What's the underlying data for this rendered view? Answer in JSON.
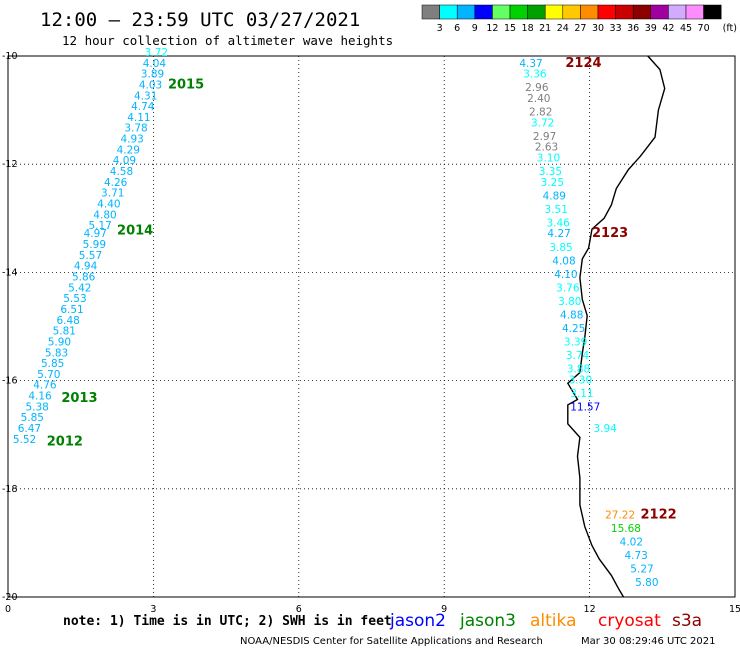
{
  "header": {
    "title": "12:00 – 23:59 UTC 03/27/2021",
    "subtitle": "12 hour collection of altimeter wave heights"
  },
  "colorbar": {
    "swatches": [
      "#7f7f7f",
      "#00ffff",
      "#00b4ff",
      "#0000ff",
      "#64ff64",
      "#00d200",
      "#00a000",
      "#ffff00",
      "#ffc800",
      "#ff8c00",
      "#ff0000",
      "#c80000",
      "#8c0000",
      "#a000a0",
      "#d2aaff",
      "#ff8cff",
      "#000000"
    ],
    "labels": [
      "3",
      "6",
      "9",
      "12",
      "15",
      "18",
      "21",
      "24",
      "27",
      "30",
      "33",
      "36",
      "39",
      "42",
      "45",
      "70"
    ],
    "unit": "(ft)"
  },
  "axes": {
    "xlim": [
      0,
      15
    ],
    "ylim": [
      -20,
      -10
    ],
    "xticks": [
      "0",
      "3",
      "6",
      "9",
      "12",
      "15"
    ],
    "yticks": [
      "-10",
      "-12",
      "-14",
      "-16",
      "-18",
      "-20"
    ]
  },
  "footer": {
    "note": "note:  1) Time is in UTC;  2) SWH is in feet",
    "credit": "NOAA/NESDIS Center for Satellite Applications and Research",
    "timestamp": "Mar 30 08:29:46 UTC 2021",
    "legend": [
      {
        "label": "jason2",
        "color": "#0000ff"
      },
      {
        "label": "jason3",
        "color": "#008000"
      },
      {
        "label": "altika",
        "color": "#ff8c00"
      },
      {
        "label": "cryosat",
        "color": "#ff0000"
      },
      {
        "label": "s3a",
        "color": "#8c0000"
      }
    ]
  },
  "chart_data": {
    "type": "scatter",
    "tracks": [
      {
        "name": "2015",
        "color": "#008000",
        "lon": 3.3,
        "lat": -10.6
      },
      {
        "name": "2014",
        "color": "#008000",
        "lon": 2.25,
        "lat": -13.3
      },
      {
        "name": "2013",
        "color": "#008000",
        "lon": 1.1,
        "lat": -16.4
      },
      {
        "name": "2012",
        "color": "#008000",
        "lon": 0.8,
        "lat": -17.2
      },
      {
        "name": "2124",
        "color": "#8c0000",
        "lon": 11.5,
        "lat": -10.2
      },
      {
        "name": "2123",
        "color": "#8c0000",
        "lon": 12.05,
        "lat": -13.35
      },
      {
        "name": "2122",
        "color": "#8c0000",
        "lon": 13.05,
        "lat": -18.55
      }
    ],
    "points": [
      {
        "v": "3.72",
        "lon": 2.82,
        "lat": -10.0,
        "c": "#00ffff"
      },
      {
        "v": "4.04",
        "lon": 2.78,
        "lat": -10.2,
        "c": "#00b4ff"
      },
      {
        "v": "3.89",
        "lon": 2.74,
        "lat": -10.4,
        "c": "#00b4ff"
      },
      {
        "v": "4.03",
        "lon": 2.7,
        "lat": -10.6,
        "c": "#00b4ff"
      },
      {
        "v": "4.31",
        "lon": 2.6,
        "lat": -10.8,
        "c": "#00b4ff"
      },
      {
        "v": "4.74",
        "lon": 2.54,
        "lat": -11.0,
        "c": "#00b4ff"
      },
      {
        "v": "4.11",
        "lon": 2.46,
        "lat": -11.2,
        "c": "#00b4ff"
      },
      {
        "v": "3.78",
        "lon": 2.4,
        "lat": -11.4,
        "c": "#00b4ff"
      },
      {
        "v": "4.93",
        "lon": 2.32,
        "lat": -11.6,
        "c": "#00b4ff"
      },
      {
        "v": "4.29",
        "lon": 2.24,
        "lat": -11.8,
        "c": "#00b4ff"
      },
      {
        "v": "4.09",
        "lon": 2.16,
        "lat": -12.0,
        "c": "#00b4ff"
      },
      {
        "v": "4.58",
        "lon": 2.1,
        "lat": -12.2,
        "c": "#00b4ff"
      },
      {
        "v": "4.26",
        "lon": 1.98,
        "lat": -12.4,
        "c": "#00b4ff"
      },
      {
        "v": "3.71",
        "lon": 1.92,
        "lat": -12.6,
        "c": "#00b4ff"
      },
      {
        "v": "4.40",
        "lon": 1.84,
        "lat": -12.8,
        "c": "#00b4ff"
      },
      {
        "v": "4.80",
        "lon": 1.76,
        "lat": -13.0,
        "c": "#00b4ff"
      },
      {
        "v": "5.17",
        "lon": 1.66,
        "lat": -13.2,
        "c": "#00b4ff"
      },
      {
        "v": "4.97",
        "lon": 1.56,
        "lat": -13.35,
        "c": "#00b4ff"
      },
      {
        "v": "5.99",
        "lon": 1.54,
        "lat": -13.55,
        "c": "#00b4ff"
      },
      {
        "v": "5.57",
        "lon": 1.46,
        "lat": -13.75,
        "c": "#00b4ff"
      },
      {
        "v": "4.94",
        "lon": 1.36,
        "lat": -13.95,
        "c": "#00b4ff"
      },
      {
        "v": "5.86",
        "lon": 1.32,
        "lat": -14.15,
        "c": "#00b4ff"
      },
      {
        "v": "5.42",
        "lon": 1.24,
        "lat": -14.35,
        "c": "#00b4ff"
      },
      {
        "v": "5.53",
        "lon": 1.14,
        "lat": -14.55,
        "c": "#00b4ff"
      },
      {
        "v": "6.51",
        "lon": 1.08,
        "lat": -14.75,
        "c": "#00b4ff"
      },
      {
        "v": "6.48",
        "lon": 1.0,
        "lat": -14.95,
        "c": "#00b4ff"
      },
      {
        "v": "5.81",
        "lon": 0.92,
        "lat": -15.15,
        "c": "#00b4ff"
      },
      {
        "v": "5.90",
        "lon": 0.82,
        "lat": -15.35,
        "c": "#00b4ff"
      },
      {
        "v": "5.83",
        "lon": 0.76,
        "lat": -15.55,
        "c": "#00b4ff"
      },
      {
        "v": "5.85",
        "lon": 0.68,
        "lat": -15.75,
        "c": "#00b4ff"
      },
      {
        "v": "5.70",
        "lon": 0.6,
        "lat": -15.95,
        "c": "#00b4ff"
      },
      {
        "v": "4.76",
        "lon": 0.52,
        "lat": -16.15,
        "c": "#00b4ff"
      },
      {
        "v": "4.16",
        "lon": 0.42,
        "lat": -16.35,
        "c": "#00b4ff"
      },
      {
        "v": "5.38",
        "lon": 0.36,
        "lat": -16.55,
        "c": "#00b4ff"
      },
      {
        "v": "5.85",
        "lon": 0.26,
        "lat": -16.75,
        "c": "#00b4ff"
      },
      {
        "v": "6.47",
        "lon": 0.2,
        "lat": -16.95,
        "c": "#00b4ff"
      },
      {
        "v": "5.52",
        "lon": 0.1,
        "lat": -17.15,
        "c": "#00b4ff"
      },
      {
        "v": "4.37",
        "lon": 10.55,
        "lat": -10.2,
        "c": "#00b4ff"
      },
      {
        "v": "3.36",
        "lon": 10.63,
        "lat": -10.4,
        "c": "#00ffff"
      },
      {
        "v": "2.96",
        "lon": 10.67,
        "lat": -10.65,
        "c": "#7f7f7f"
      },
      {
        "v": "2.40",
        "lon": 10.71,
        "lat": -10.85,
        "c": "#7f7f7f"
      },
      {
        "v": "2.82",
        "lon": 10.75,
        "lat": -11.1,
        "c": "#7f7f7f"
      },
      {
        "v": "3.72",
        "lon": 10.79,
        "lat": -11.3,
        "c": "#00ffff"
      },
      {
        "v": "2.97",
        "lon": 10.83,
        "lat": -11.55,
        "c": "#7f7f7f"
      },
      {
        "v": "2.63",
        "lon": 10.87,
        "lat": -11.75,
        "c": "#7f7f7f"
      },
      {
        "v": "3.10",
        "lon": 10.91,
        "lat": -11.95,
        "c": "#00ffff"
      },
      {
        "v": "3.35",
        "lon": 10.95,
        "lat": -12.2,
        "c": "#00ffff"
      },
      {
        "v": "3.25",
        "lon": 10.99,
        "lat": -12.4,
        "c": "#00ffff"
      },
      {
        "v": "4.89",
        "lon": 11.03,
        "lat": -12.65,
        "c": "#00b4ff"
      },
      {
        "v": "3.51",
        "lon": 11.07,
        "lat": -12.9,
        "c": "#00ffff"
      },
      {
        "v": "3.46",
        "lon": 11.11,
        "lat": -13.15,
        "c": "#00ffff"
      },
      {
        "v": "4.27",
        "lon": 11.13,
        "lat": -13.35,
        "c": "#00b4ff"
      },
      {
        "v": "3.85",
        "lon": 11.17,
        "lat": -13.6,
        "c": "#00ffff"
      },
      {
        "v": "4.08",
        "lon": 11.23,
        "lat": -13.85,
        "c": "#00b4ff"
      },
      {
        "v": "4.10",
        "lon": 11.27,
        "lat": -14.1,
        "c": "#00b4ff"
      },
      {
        "v": "3.76",
        "lon": 11.31,
        "lat": -14.35,
        "c": "#00ffff"
      },
      {
        "v": "3.80",
        "lon": 11.35,
        "lat": -14.6,
        "c": "#00ffff"
      },
      {
        "v": "4.88",
        "lon": 11.39,
        "lat": -14.85,
        "c": "#00b4ff"
      },
      {
        "v": "4.25",
        "lon": 11.43,
        "lat": -15.1,
        "c": "#00b4ff"
      },
      {
        "v": "3.39",
        "lon": 11.47,
        "lat": -15.35,
        "c": "#00ffff"
      },
      {
        "v": "3.74",
        "lon": 11.51,
        "lat": -15.6,
        "c": "#00ffff"
      },
      {
        "v": "3.88",
        "lon": 11.53,
        "lat": -15.85,
        "c": "#00ffff"
      },
      {
        "v": "3.30",
        "lon": 11.57,
        "lat": -16.05,
        "c": "#00ffff"
      },
      {
        "v": "3.11",
        "lon": 11.6,
        "lat": -16.3,
        "c": "#00ffff"
      },
      {
        "v": "11.57",
        "lon": 11.6,
        "lat": -16.55,
        "c": "#0000ff"
      },
      {
        "v": "3.94",
        "lon": 12.08,
        "lat": -16.95,
        "c": "#00ffff"
      },
      {
        "v": "27.22",
        "lon": 12.32,
        "lat": -18.55,
        "c": "#ff8c00"
      },
      {
        "v": "15.68",
        "lon": 12.44,
        "lat": -18.8,
        "c": "#00d200"
      },
      {
        "v": "4.02",
        "lon": 12.62,
        "lat": -19.05,
        "c": "#00b4ff"
      },
      {
        "v": "4.73",
        "lon": 12.72,
        "lat": -19.3,
        "c": "#00b4ff"
      },
      {
        "v": "5.27",
        "lon": 12.84,
        "lat": -19.55,
        "c": "#00b4ff"
      },
      {
        "v": "5.80",
        "lon": 12.94,
        "lat": -19.8,
        "c": "#00b4ff"
      }
    ],
    "coastline": [
      [
        13.2,
        -10.0
      ],
      [
        13.45,
        -10.25
      ],
      [
        13.55,
        -10.6
      ],
      [
        13.42,
        -11.0
      ],
      [
        13.35,
        -11.5
      ],
      [
        13.05,
        -11.85
      ],
      [
        12.8,
        -12.1
      ],
      [
        12.55,
        -12.45
      ],
      [
        12.45,
        -12.75
      ],
      [
        12.3,
        -13.0
      ],
      [
        12.05,
        -13.2
      ],
      [
        11.98,
        -13.55
      ],
      [
        11.85,
        -13.75
      ],
      [
        11.8,
        -14.1
      ],
      [
        11.85,
        -14.5
      ],
      [
        11.95,
        -14.8
      ],
      [
        11.9,
        -15.2
      ],
      [
        11.85,
        -15.5
      ],
      [
        11.8,
        -15.85
      ],
      [
        11.55,
        -16.05
      ],
      [
        11.75,
        -16.35
      ],
      [
        11.55,
        -16.45
      ],
      [
        11.55,
        -16.8
      ],
      [
        11.8,
        -17.05
      ],
      [
        11.75,
        -17.4
      ],
      [
        11.8,
        -17.8
      ],
      [
        11.8,
        -18.3
      ],
      [
        11.9,
        -18.7
      ],
      [
        12.05,
        -19.05
      ],
      [
        12.2,
        -19.3
      ],
      [
        12.45,
        -19.6
      ],
      [
        12.6,
        -19.85
      ],
      [
        12.7,
        -20.0
      ]
    ]
  }
}
